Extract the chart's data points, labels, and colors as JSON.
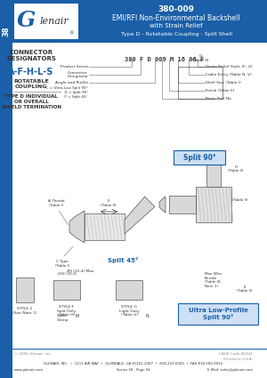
{
  "title_series": "380-009",
  "title_main": "EMI/RFI Non-Environmental Backshell",
  "title_sub": "with Strain Relief",
  "title_type": "Type D - Rotatable Coupling - Split Shell",
  "header_bg": "#1a5fa8",
  "tab_text": "38",
  "connector_label": "CONNECTOR\nDESIGNATORS",
  "connector_code": "A-F-H-L-S",
  "coupling_label": "ROTATABLE\nCOUPLING",
  "type_label": "TYPE D INDIVIDUAL\nOR OVERALL\nSHIELD TERMINATION",
  "part_number_example": "380 F D 009 M 16 06 F",
  "footer_line1": "GLENAIR, INC.  •  1211 AIR WAY  •  GLENDALE, CA 91201-2497  •  818-247-6000  •  FAX 818-500-9912",
  "footer_line2_left": "www.glenair.com",
  "footer_line2_mid": "Series 38 - Page 56",
  "footer_line2_right": "E-Mail: sales@glenair.com",
  "footer_copy": "© 2005 Glenair, Inc.",
  "footer_made": "Printed in U.S.A.",
  "accent_color": "#1a5fa8",
  "body_bg": "#ffffff",
  "light_blue": "#cde0f5",
  "gray": "#888888",
  "dark_gray": "#333333",
  "mid_gray": "#aaaaaa"
}
